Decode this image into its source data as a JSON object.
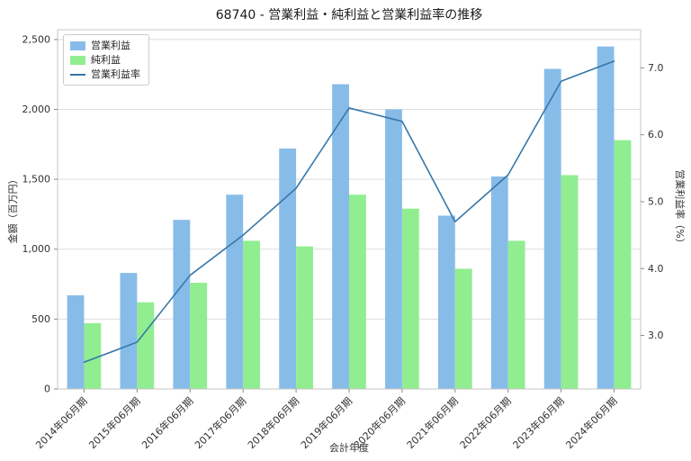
{
  "title": "68740 - 営業利益・純利益と営業利益率の推移",
  "chart_data": {
    "type": "bar+line",
    "title": "68740 - 営業利益・純利益と営業利益率の推移",
    "xlabel": "会計年度",
    "ylabel_left": "金額（百万円）",
    "ylabel_right": "営業利益率（%）",
    "grid": true,
    "legend_position": "upper-left",
    "categories": [
      "2014年06月期",
      "2015年06月期",
      "2016年06月期",
      "2017年06月期",
      "2018年06月期",
      "2019年06月期",
      "2020年06月期",
      "2021年06月期",
      "2022年06月期",
      "2023年06月期",
      "2024年06月期"
    ],
    "series": [
      {
        "name": "営業利益",
        "type": "bar",
        "axis": "left",
        "color": "#88bce8",
        "values": [
          670,
          830,
          1210,
          1390,
          1720,
          2180,
          2000,
          1240,
          1520,
          2290,
          2450
        ]
      },
      {
        "name": "純利益",
        "type": "bar",
        "axis": "left",
        "color": "#90ee90",
        "values": [
          470,
          620,
          760,
          1060,
          1020,
          1390,
          1290,
          860,
          1060,
          1530,
          1780
        ]
      },
      {
        "name": "営業利益率",
        "type": "line",
        "axis": "right",
        "color": "#3777a8",
        "values": [
          2.6,
          2.9,
          3.9,
          4.5,
          5.2,
          6.4,
          6.2,
          4.7,
          5.4,
          6.8,
          7.1
        ]
      }
    ],
    "ylim_left": [
      0,
      2570
    ],
    "ylim_right": [
      2.2,
      7.57
    ],
    "yticks_left": {
      "values": [
        0,
        500,
        1000,
        1500,
        2000,
        2500
      ],
      "labels": [
        "0",
        "500",
        "1,000",
        "1,500",
        "2,000",
        "2,500"
      ]
    },
    "yticks_right": {
      "values": [
        3.0,
        4.0,
        5.0,
        6.0,
        7.0
      ],
      "labels": [
        "3.0",
        "4.0",
        "5.0",
        "6.0",
        "7.0"
      ]
    },
    "colors": {
      "grid": "#dedede",
      "spine": "#c4c4c4",
      "tick": "#8a8a8a",
      "tick_label": "#303030",
      "title": "#1a1a1a"
    }
  }
}
